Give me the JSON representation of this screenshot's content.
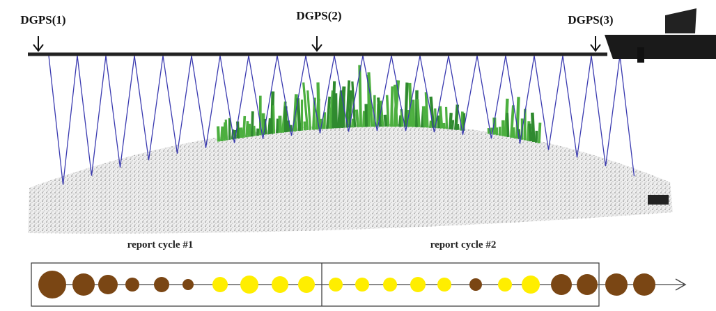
{
  "markers": [
    {
      "label": "DGPS(1)"
    },
    {
      "label": "DGPS(2)"
    },
    {
      "label": "DGPS(3)"
    }
  ],
  "report_cycles": [
    {
      "label": "report cycle #1"
    },
    {
      "label": "report cycle #2"
    }
  ]
}
